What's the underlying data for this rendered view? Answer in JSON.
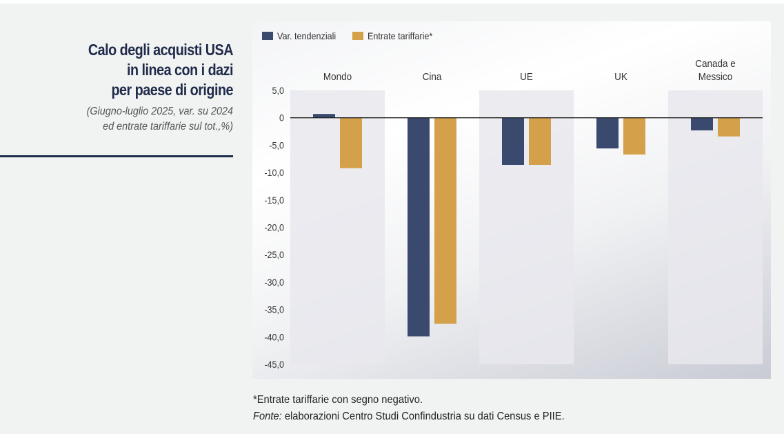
{
  "header": {
    "title_lines": [
      "Calo degli acquisti USA",
      "in linea con i dazi",
      "per paese di origine"
    ],
    "subtitle_lines": [
      "(Giugno-luglio 2025, var. su 2024",
      "ed entrate tariffarie sul tot.,%)"
    ]
  },
  "footnote": {
    "note": "*Entrate tariffarie con segno negativo.",
    "source_label": "Fonte:",
    "source_text": " elaborazioni Centro Studi Confindustria su dati Census e PIIE."
  },
  "colors": {
    "series1": "#3a4a6e",
    "series2": "#d4a04a",
    "panel_shade": "#e8e8ed",
    "zero_line": "#222222",
    "title": "#1f2b4a"
  },
  "chart_data": {
    "type": "bar",
    "title": "Calo degli acquisti USA in linea con i dazi per paese di origine",
    "subtitle": "(Giugno-luglio 2025, var. su 2024 ed entrate tariffarie sul tot.,%)",
    "categories": [
      "Mondo",
      "Cina",
      "UE",
      "UK",
      "Canada e Messico"
    ],
    "category_label_lines": [
      [
        "Mondo"
      ],
      [
        "Cina"
      ],
      [
        "UE"
      ],
      [
        "UK"
      ],
      [
        "Canada e",
        "Messico"
      ]
    ],
    "shaded_categories": [
      true,
      false,
      true,
      false,
      true
    ],
    "series": [
      {
        "name": "Var. tendenziali",
        "color": "#3a4a6e",
        "values": [
          0.7,
          -39.9,
          -8.6,
          -5.6,
          -2.3
        ]
      },
      {
        "name": "Entrate tariffarie*",
        "color": "#d4a04a",
        "values": [
          -9.2,
          -37.6,
          -8.6,
          -6.7,
          -3.4
        ]
      }
    ],
    "xlabel": "",
    "ylabel": "",
    "ylim": [
      -45,
      5
    ],
    "yticks": [
      5,
      0,
      -5,
      -10,
      -15,
      -20,
      -25,
      -30,
      -35,
      -40,
      -45
    ],
    "ytick_labels": [
      "5,0",
      "0",
      "-5,0",
      "-10,0",
      "-15,0",
      "-20,0",
      "-25,0",
      "-30,0",
      "-35,0",
      "-40,0",
      "-45,0"
    ],
    "grid": false,
    "legend_position": "top-left"
  }
}
